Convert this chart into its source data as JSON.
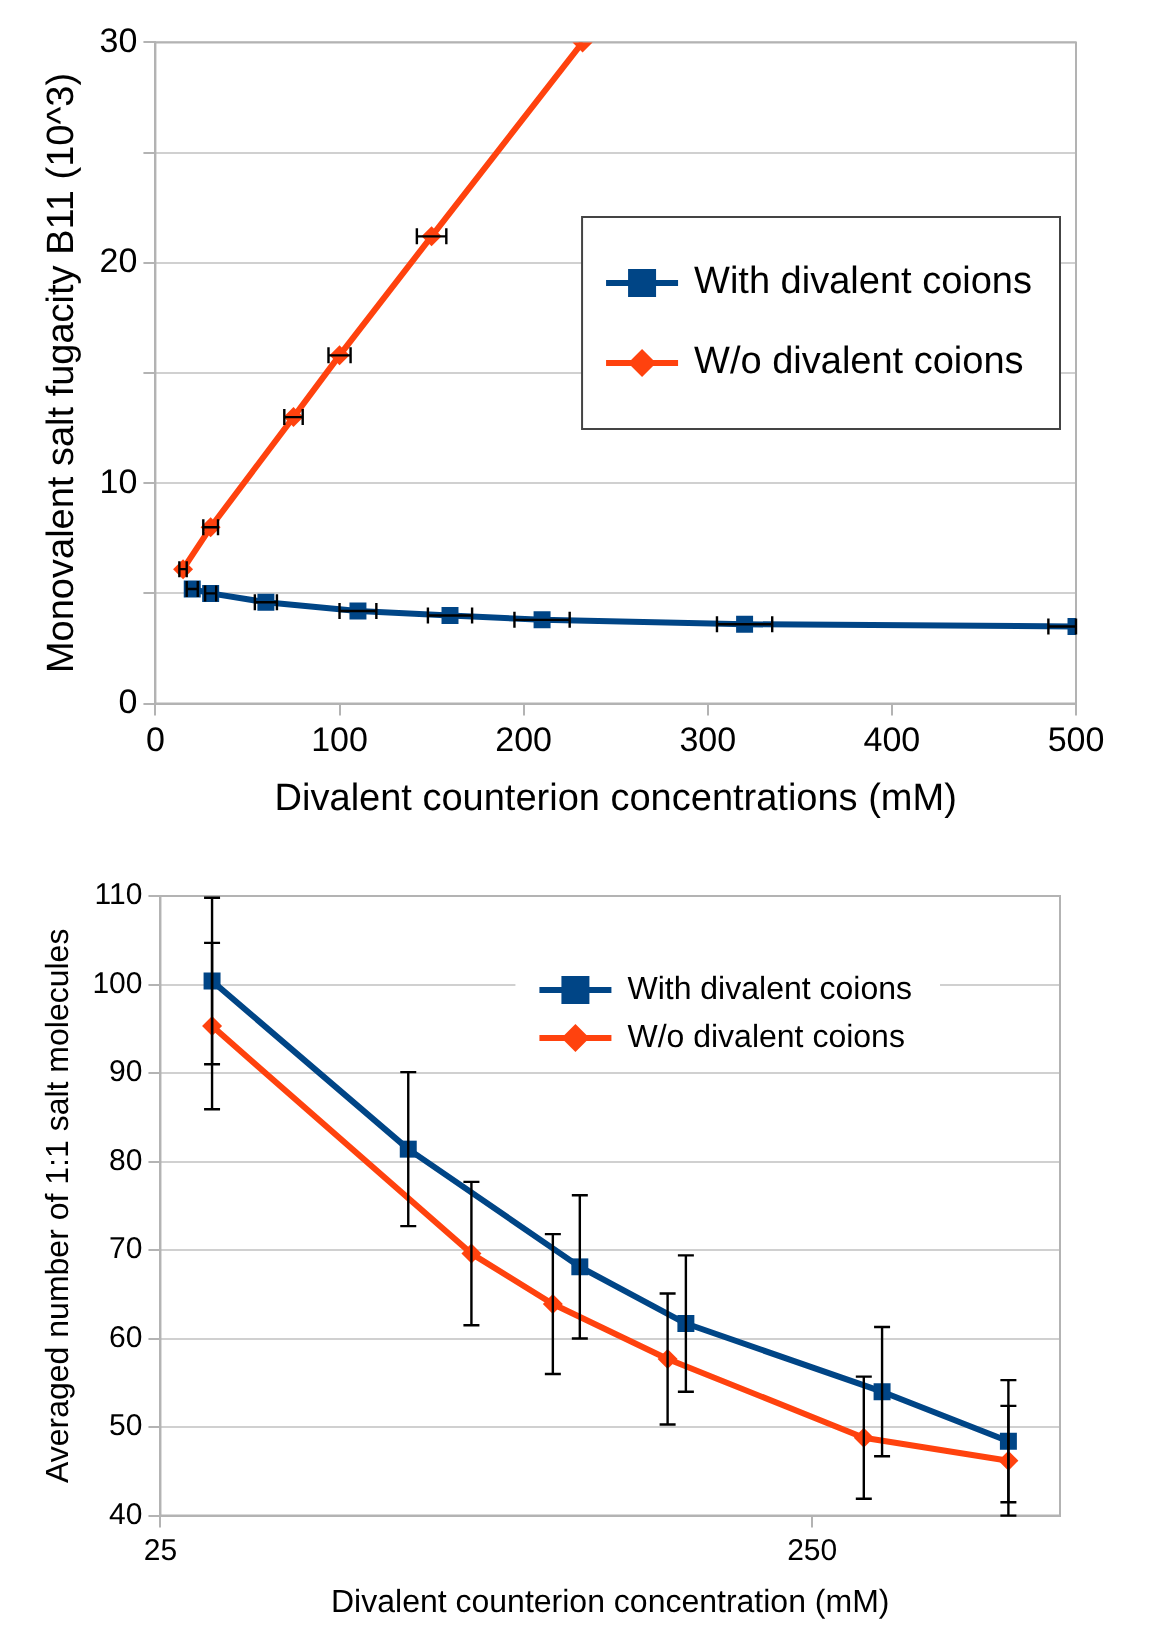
{
  "chart_data": [
    {
      "type": "line",
      "xlabel": "Divalent counterion concentrations (mM)",
      "ylabel": "Monovalent salt fugacity B11 (10^3)",
      "xlim": [
        0,
        500
      ],
      "xticks": [
        0,
        100,
        200,
        300,
        400,
        500
      ],
      "ylim": [
        0,
        30
      ],
      "yticks": [
        0,
        {
          "value": 5,
          "label": null
        },
        10,
        {
          "value": 15,
          "label": null
        },
        20,
        {
          "value": 25,
          "label": null
        },
        30
      ],
      "grid": "y",
      "legend": "right",
      "series": [
        {
          "name": "With divalent coions",
          "color": "#004586",
          "marker": "square",
          "x": [
            20,
            30,
            60,
            110,
            160,
            210,
            320,
            500
          ],
          "values": [
            5.2,
            5.0,
            4.6,
            4.2,
            4.0,
            3.8,
            3.6,
            3.5
          ],
          "xerrors": [
            3,
            3,
            6,
            10,
            12,
            15,
            15,
            [
              485,
              500
            ]
          ]
        },
        {
          "name": "W/o divalent coions",
          "color": "#ff420e",
          "marker": "diamond",
          "x": [
            15,
            30,
            75,
            100,
            150,
            232
          ],
          "values": [
            6.1,
            8.0,
            13.0,
            15.8,
            21.2,
            30
          ],
          "xerrors": [
            2,
            4,
            5,
            6,
            8,
            null
          ]
        }
      ]
    },
    {
      "type": "line",
      "xlabel": "Divalent counterion concentration (mM)",
      "ylabel": "Averaged number of 1:1 salt molecules",
      "log": "x",
      "xlim": [
        25,
        600
      ],
      "xticks": [
        25,
        250
      ],
      "ylim": [
        40,
        110
      ],
      "yticks": [
        40,
        50,
        60,
        70,
        80,
        90,
        100,
        110
      ],
      "grid": "y",
      "legend": "top right",
      "series": [
        {
          "name": "With divalent coions",
          "color": "#004586",
          "marker": "square",
          "x": [
            30,
            60,
            110,
            160,
            320,
            500
          ],
          "values": [
            100.4,
            81.4,
            68.1,
            61.7,
            54.0,
            48.4
          ],
          "errors": [
            9.4,
            8.7,
            8.1,
            7.7,
            7.3,
            6.9
          ]
        },
        {
          "name": "W/o divalent coions",
          "color": "#ff420e",
          "marker": "diamond",
          "x": [
            30,
            75,
            100,
            150,
            300,
            500
          ],
          "values": [
            95.3,
            69.6,
            63.9,
            57.7,
            48.8,
            46.2
          ],
          "errors": [
            9.4,
            8.1,
            7.9,
            7.4,
            6.9,
            6.2
          ]
        }
      ]
    }
  ]
}
